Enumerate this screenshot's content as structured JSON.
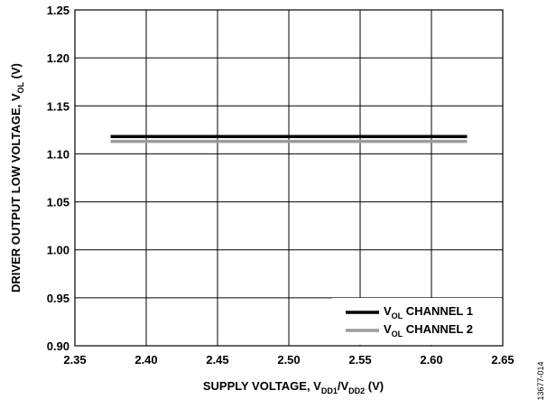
{
  "chart_data": {
    "type": "line",
    "xlabel": {
      "main": "SUPPLY VOLTAGE, V",
      "sub1": "DD1",
      "sep": "/V",
      "sub2": "DD2",
      "unit": " (V)"
    },
    "ylabel": {
      "main": "DRIVER OUTPUT LOW VOLTAGE, V",
      "sub": "OL",
      "unit": " (V)"
    },
    "xlim": [
      2.35,
      2.65
    ],
    "ylim": [
      0.9,
      1.25
    ],
    "x_ticks": [
      2.35,
      2.4,
      2.45,
      2.5,
      2.55,
      2.6,
      2.65
    ],
    "x_tick_labels": [
      "2.35",
      "2.40",
      "2.45",
      "2.50",
      "2.55",
      "2.60",
      "2.65"
    ],
    "y_ticks": [
      0.9,
      0.95,
      1.0,
      1.05,
      1.1,
      1.15,
      1.2,
      1.25
    ],
    "y_tick_labels": [
      "0.90",
      "0.95",
      "1.00",
      "1.05",
      "1.10",
      "1.15",
      "1.20",
      "1.25"
    ],
    "grid": true,
    "legend_position": "bottom-right",
    "series": [
      {
        "name": "CHANNEL 1",
        "prefix": "V",
        "sub": "OL",
        "color": "#000000",
        "x": [
          2.375,
          2.625
        ],
        "y": [
          1.118,
          1.118
        ]
      },
      {
        "name": "CHANNEL 2",
        "prefix": "V",
        "sub": "OL",
        "color": "#9b9b9b",
        "x": [
          2.375,
          2.625
        ],
        "y": [
          1.113,
          1.113
        ]
      }
    ],
    "figure_id": "13677-014"
  }
}
